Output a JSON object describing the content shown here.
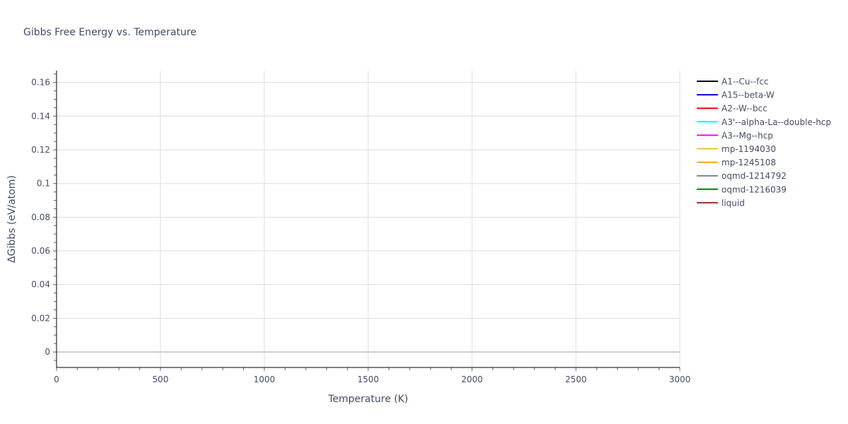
{
  "chart_data": {
    "type": "line",
    "title": "Gibbs Free Energy vs. Temperature",
    "xlabel": "Temperature (K)",
    "ylabel": "ΔGibbs (eV/atom)",
    "xlim": [
      0,
      3000
    ],
    "ylim": [
      -0.0092,
      0.167
    ],
    "xticks": [
      0,
      500,
      1000,
      1500,
      2000,
      2500,
      3000
    ],
    "yticks": [
      0,
      0.02,
      0.04,
      0.06,
      0.08,
      0.1,
      0.12,
      0.14,
      0.16
    ],
    "grid": true,
    "legend_position": "right",
    "series": [
      {
        "name": "A1--Cu--fcc",
        "color": "#000000",
        "x": [],
        "y": []
      },
      {
        "name": "A15--beta-W",
        "color": "#0000ff",
        "x": [],
        "y": []
      },
      {
        "name": "A2--W--bcc",
        "color": "#ff0000",
        "x": [],
        "y": []
      },
      {
        "name": "A3'--alpha-La--double-hcp",
        "color": "#00ffff",
        "x": [],
        "y": []
      },
      {
        "name": "A3--Mg--hcp",
        "color": "#ff00ff",
        "x": [],
        "y": []
      },
      {
        "name": "mp-1194030",
        "color": "#f0c030",
        "x": [],
        "y": []
      },
      {
        "name": "mp-1245108",
        "color": "#ffa500",
        "x": [],
        "y": []
      },
      {
        "name": "oqmd-1214792",
        "color": "#808080",
        "x": [],
        "y": []
      },
      {
        "name": "oqmd-1216039",
        "color": "#008000",
        "x": [],
        "y": []
      },
      {
        "name": "liquid",
        "color": "#a52a2a",
        "x": [],
        "y": []
      }
    ]
  }
}
